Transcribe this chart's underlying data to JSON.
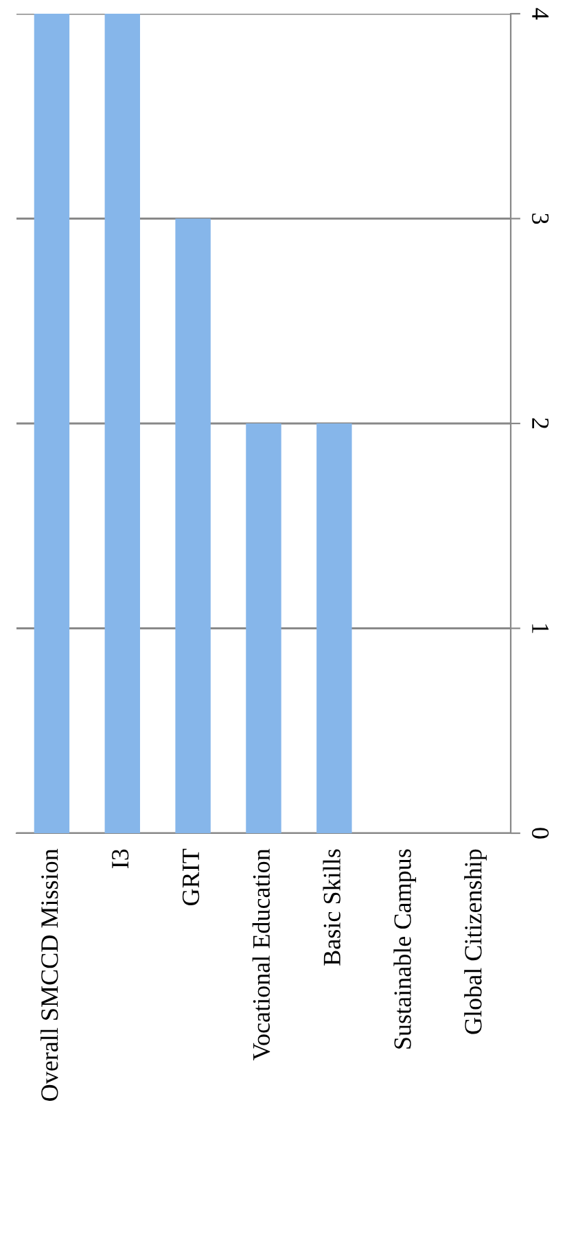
{
  "chart_data": {
    "type": "bar",
    "categories": [
      "Overall SMCCD Mission",
      "I3",
      "GRIT",
      "Vocational Education",
      "Basic Skills",
      "Sustainable Campus",
      "Global Citizenship"
    ],
    "values": [
      4,
      4,
      3,
      2,
      2,
      0,
      0
    ],
    "color": "#86b6ea",
    "ylim": [
      0,
      4
    ],
    "yticks": [
      0,
      1,
      2,
      3,
      4
    ],
    "grid": "y"
  }
}
